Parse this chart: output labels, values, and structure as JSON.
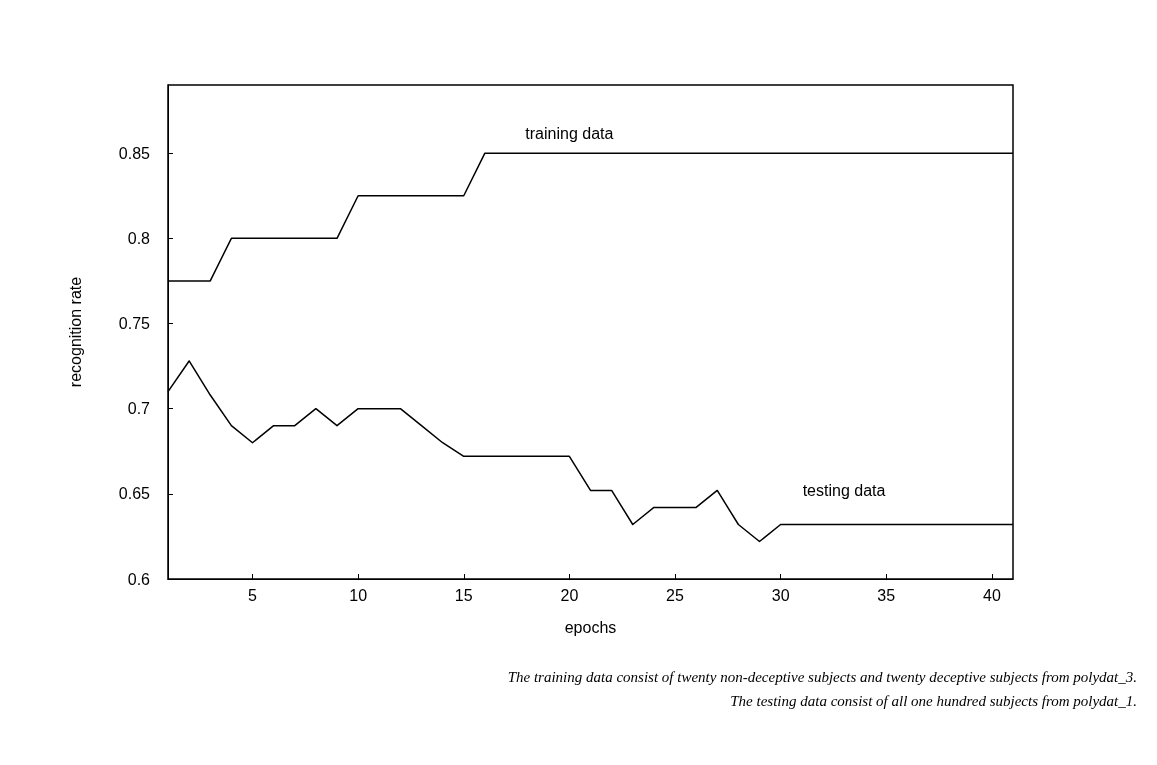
{
  "chart_data": {
    "type": "line",
    "xlabel": "epochs",
    "ylabel": "recognition rate",
    "x": [
      1,
      2,
      3,
      4,
      5,
      6,
      7,
      8,
      9,
      10,
      11,
      12,
      13,
      14,
      15,
      16,
      17,
      18,
      19,
      20,
      21,
      22,
      23,
      24,
      25,
      26,
      27,
      28,
      29,
      30,
      31,
      32,
      33,
      34,
      35,
      36,
      37,
      38,
      39,
      40,
      41
    ],
    "series": [
      {
        "name": "training data",
        "color": "#000000",
        "values": [
          0.775,
          0.775,
          0.775,
          0.8,
          0.8,
          0.8,
          0.8,
          0.8,
          0.8,
          0.825,
          0.825,
          0.825,
          0.825,
          0.825,
          0.825,
          0.85,
          0.85,
          0.85,
          0.85,
          0.85,
          0.85,
          0.85,
          0.85,
          0.85,
          0.85,
          0.85,
          0.85,
          0.85,
          0.85,
          0.85,
          0.85,
          0.85,
          0.85,
          0.85,
          0.85,
          0.85,
          0.85,
          0.85,
          0.85,
          0.85,
          0.85
        ]
      },
      {
        "name": "testing data",
        "color": "#000000",
        "values": [
          0.71,
          0.728,
          0.708,
          0.69,
          0.68,
          0.69,
          0.69,
          0.7,
          0.69,
          0.7,
          0.7,
          0.7,
          0.69,
          0.68,
          0.672,
          0.672,
          0.672,
          0.672,
          0.672,
          0.672,
          0.652,
          0.652,
          0.632,
          0.642,
          0.642,
          0.642,
          0.652,
          0.632,
          0.622,
          0.632,
          0.632,
          0.632,
          0.632,
          0.632,
          0.632,
          0.632,
          0.632,
          0.632,
          0.632,
          0.632,
          0.632
        ]
      }
    ],
    "xlim": [
      1,
      41
    ],
    "xticks": [
      5,
      10,
      15,
      20,
      25,
      30,
      35,
      40
    ],
    "ylim": [
      0.6,
      0.89
    ],
    "yticks": [
      0.6,
      0.65,
      0.7,
      0.75,
      0.8,
      0.85
    ],
    "grid": false,
    "legend": false,
    "marker": "none",
    "line_style": "solid",
    "annotations": [
      "The training data consist of twenty non-deceptive subjects and twenty deceptive subjects from polydat_3.",
      "The testing data consist of all one hundred subjects from polydat_1."
    ]
  }
}
